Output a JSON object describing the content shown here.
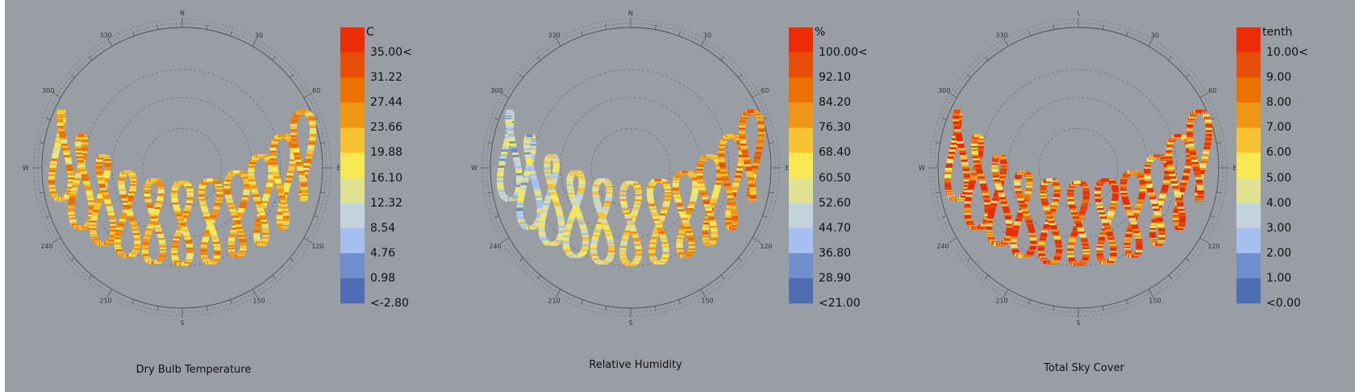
{
  "chart_data": [
    {
      "type": "scatter",
      "title": "Dry Bulb Temperature",
      "unit": "C",
      "legend_labels": [
        "35.00<",
        "31.22",
        "27.44",
        "23.66",
        "19.88",
        "16.10",
        "12.32",
        "8.54",
        "4.76",
        "0.98",
        "<-2.80"
      ],
      "compass_labels": {
        "N": "N",
        "E": "E",
        "S": "S",
        "W": "W",
        "a30": "30",
        "a60": "60",
        "a120": "120",
        "a150": "150",
        "a210": "210",
        "a240": "240",
        "a300": "300",
        "a330": "330"
      },
      "palette_bias": 0.62,
      "palette_spread": 0.22,
      "east_bias": 0.0
    },
    {
      "type": "scatter",
      "title": "Relative Humidity",
      "unit": "%",
      "legend_labels": [
        "100.00<",
        "92.10",
        "84.20",
        "76.30",
        "68.40",
        "60.50",
        "52.60",
        "44.70",
        "36.80",
        "28.90",
        "<21.00"
      ],
      "compass_labels": {
        "N": "N",
        "E": "E",
        "S": "S",
        "W": "W",
        "a30": "30",
        "a60": "60",
        "a120": "120",
        "a150": "150",
        "a210": "210",
        "a240": "240",
        "a300": "300",
        "a330": "330"
      },
      "palette_bias": 0.52,
      "palette_spread": 0.22,
      "east_bias": 0.35
    },
    {
      "type": "scatter",
      "title": "Total Sky Cover",
      "unit": "tenth",
      "legend_labels": [
        "10.00<",
        "9.00",
        "8.00",
        "7.00",
        "6.00",
        "5.00",
        "4.00",
        "3.00",
        "2.00",
        "1.00",
        "<0.00"
      ],
      "compass_labels": {
        "N": "\\",
        "E": "E",
        "S": "S",
        "W": "W",
        "a30": "30",
        "a60": "60",
        "a120": "120",
        "a150": "150",
        "a210": "210",
        "a240": "240",
        "a300": "300",
        "a330": "330"
      },
      "palette_bias": 0.82,
      "palette_spread": 0.45,
      "east_bias": 0.0
    }
  ],
  "legend_colors": [
    "#ec2c06",
    "#e74f08",
    "#ec7200",
    "#ef9617",
    "#f7c332",
    "#f8e852",
    "#e0e292",
    "#c2d3dc",
    "#a4bff0",
    "#6f8fcc",
    "#4f6db3"
  ],
  "background_color": "#999ea5"
}
